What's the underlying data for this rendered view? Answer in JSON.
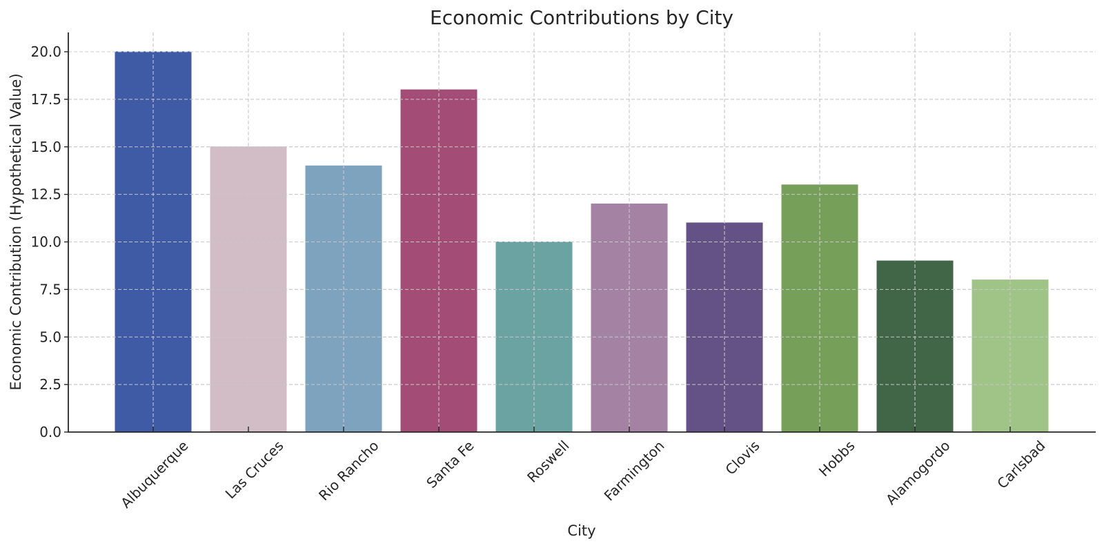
{
  "chart_data": {
    "type": "bar",
    "title": "Economic Contributions by City",
    "xlabel": "City",
    "ylabel": "Economic Contribution (Hypothetical Value)",
    "categories": [
      "Albuquerque",
      "Las Cruces",
      "Rio Rancho",
      "Santa Fe",
      "Roswell",
      "Farmington",
      "Clovis",
      "Hobbs",
      "Alamogordo",
      "Carlsbad"
    ],
    "values": [
      20,
      15,
      14,
      18,
      10,
      12,
      11,
      13,
      9,
      8
    ],
    "colors": [
      "#3f5ba5",
      "#d2bcc5",
      "#7ea3bf",
      "#a34d76",
      "#6ba3a3",
      "#a382a3",
      "#645287",
      "#76a05a",
      "#416647",
      "#a0c488"
    ],
    "yticks": [
      "0.0",
      "2.5",
      "5.0",
      "7.5",
      "10.0",
      "12.5",
      "15.0",
      "17.5",
      "20.0"
    ],
    "ylim": [
      0,
      21
    ],
    "grid": true,
    "xtick_rotation": 45,
    "legend": null
  }
}
